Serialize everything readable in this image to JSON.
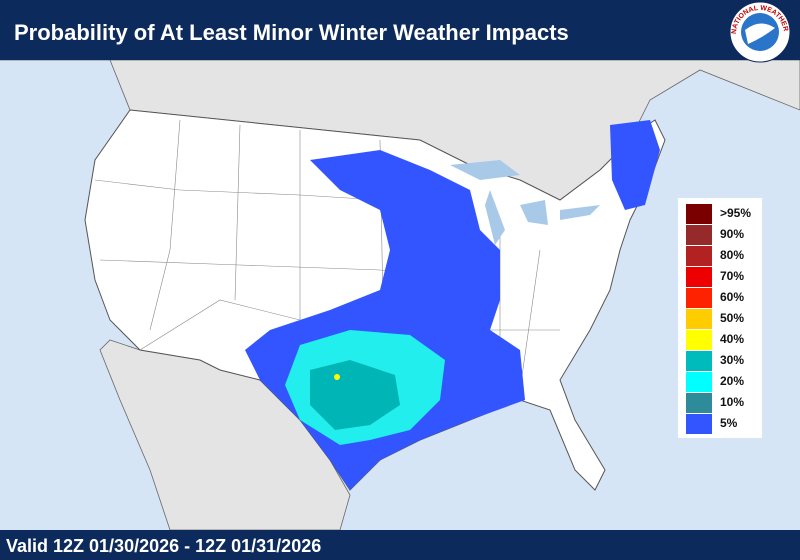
{
  "header": {
    "title": "Probability of At Least Minor Winter Weather Impacts",
    "logo_text": "NATIONAL WEATHER SERVICE"
  },
  "legend": {
    "items": [
      {
        "label": ">95%",
        "color": "#7a0000"
      },
      {
        "label": "90%",
        "color": "#962a2a"
      },
      {
        "label": "80%",
        "color": "#b22222"
      },
      {
        "label": "70%",
        "color": "#ee0000"
      },
      {
        "label": "60%",
        "color": "#ff2200"
      },
      {
        "label": "50%",
        "color": "#ffcc00"
      },
      {
        "label": "40%",
        "color": "#ffff00"
      },
      {
        "label": "30%",
        "color": "#00bbbb"
      },
      {
        "label": "20%",
        "color": "#00ffff"
      },
      {
        "label": "10%",
        "color": "#2e8b9a"
      },
      {
        "label": "5%",
        "color": "#3355ff"
      }
    ]
  },
  "footer": {
    "valid": "Valid 12Z 01/30/2026  - 12Z 01/31/2026"
  }
}
